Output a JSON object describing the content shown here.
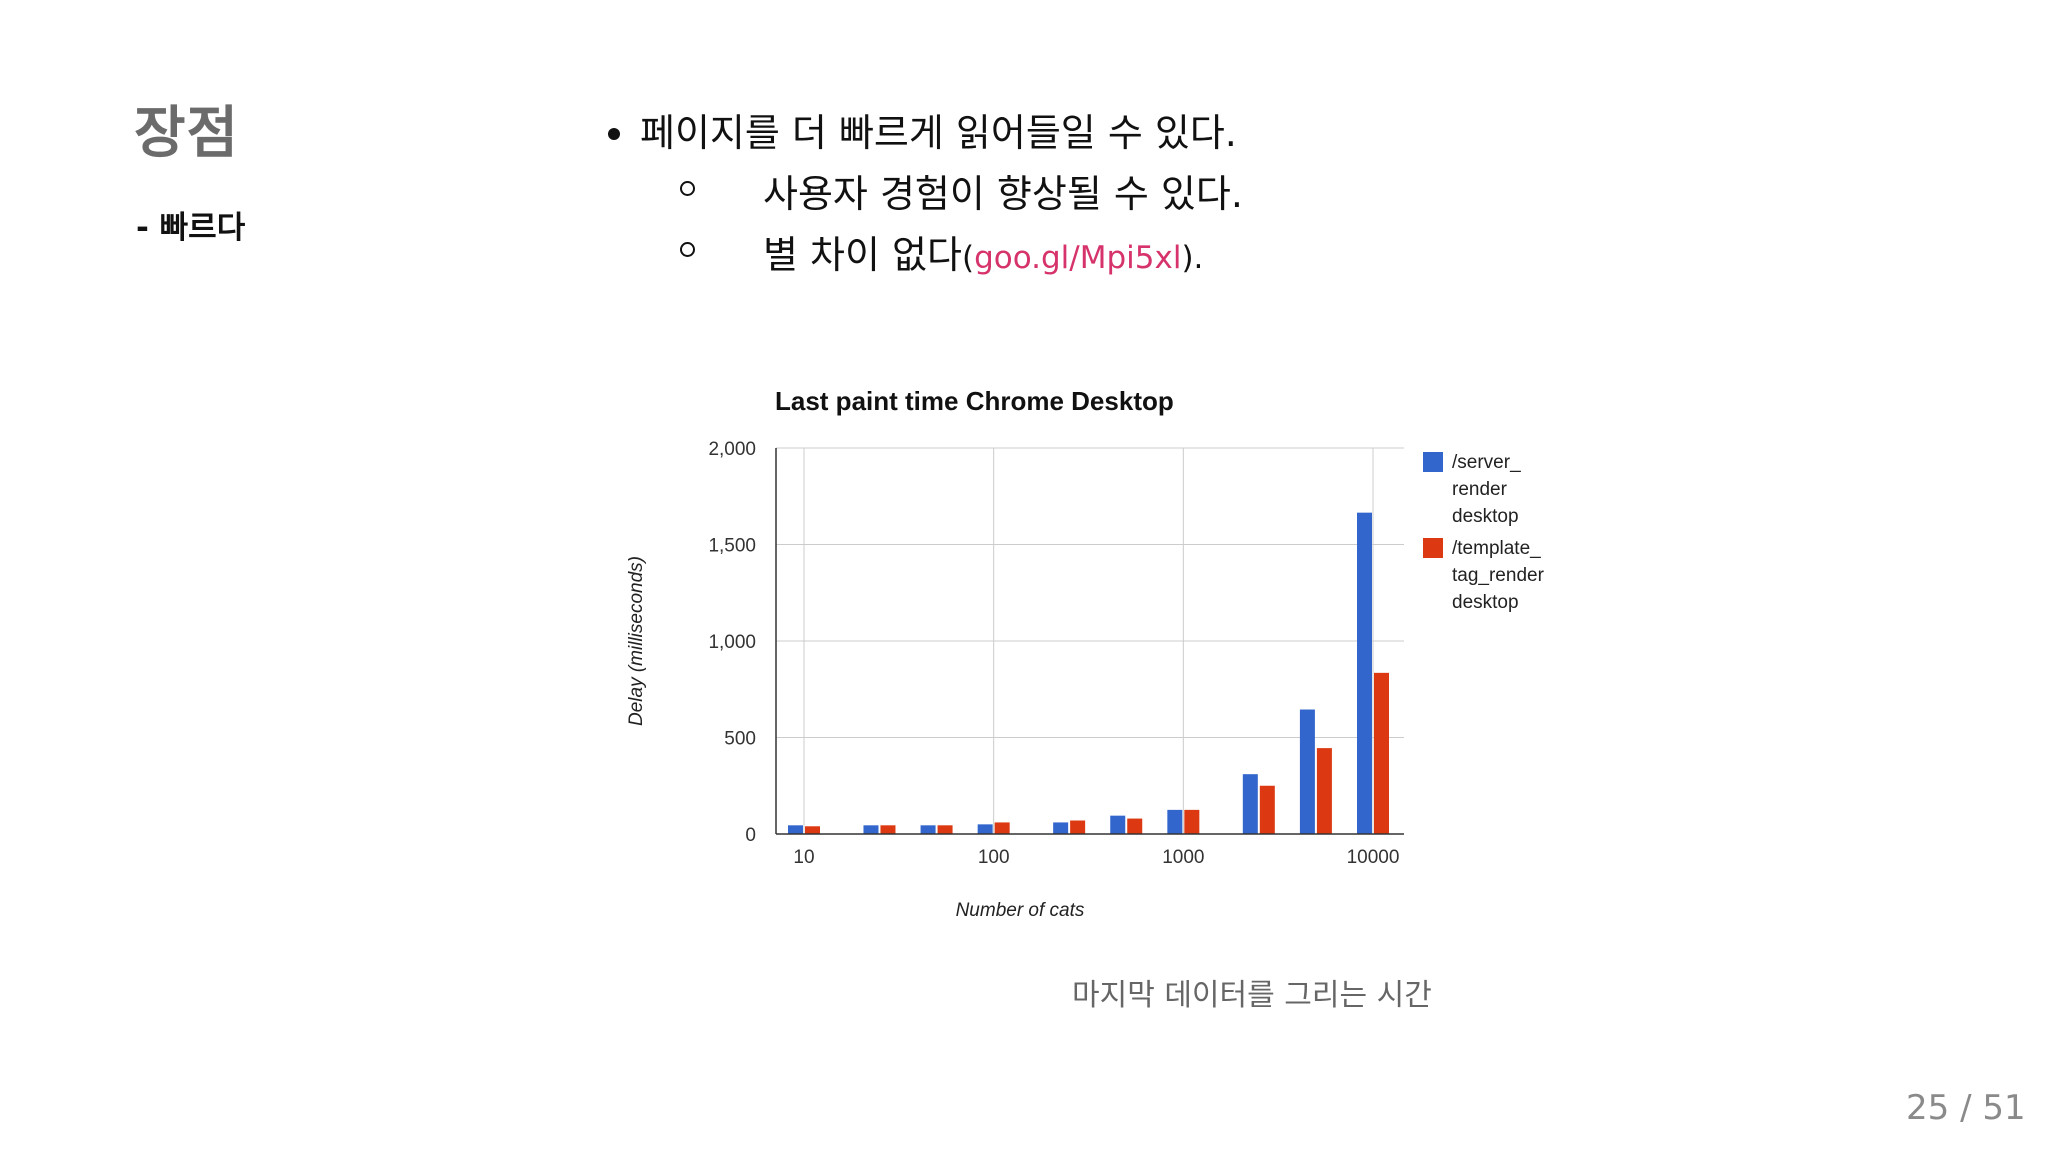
{
  "slide": {
    "title": "장점",
    "subtitle": "- 빠르다",
    "bullet1": "페이지를 더 빠르게 읽어들일 수 있다.",
    "sub1": "사용자 경험이 향상될 수 있다.",
    "sub2_text": "별 차이 없다",
    "sub2_paren_open": "(",
    "sub2_link": "goo.gl/Mpi5xl",
    "sub2_paren_close": ").",
    "caption": "마지막 데이터를 그리는 시간",
    "page": "25 / 51"
  },
  "colors": {
    "series1": "#3366cc",
    "series2": "#dc3912",
    "link": "#d6336c"
  },
  "chart_data": {
    "type": "bar",
    "title": "Last paint time Chrome Desktop",
    "xlabel": "Number of cats",
    "ylabel": "Delay (milliseconds)",
    "ylim": [
      0,
      2000
    ],
    "yticks": [
      "0",
      "500",
      "1,000",
      "1,500",
      "2,000"
    ],
    "xtick_labels": [
      "10",
      "100",
      "1000",
      "10000"
    ],
    "x_scale": "log",
    "x": [
      10,
      25,
      50,
      100,
      250,
      500,
      1000,
      2500,
      5000,
      10000
    ],
    "grid": true,
    "legend_position": "right",
    "series": [
      {
        "name": "/server_ render desktop",
        "legend_lines": [
          "/server_",
          "render",
          "desktop"
        ],
        "values": [
          45,
          45,
          45,
          50,
          60,
          95,
          125,
          310,
          645,
          1665
        ]
      },
      {
        "name": "/template_ tag_render desktop",
        "legend_lines": [
          "/template_",
          "tag_render",
          "desktop"
        ],
        "values": [
          40,
          45,
          45,
          60,
          70,
          80,
          125,
          250,
          445,
          835
        ]
      }
    ]
  }
}
